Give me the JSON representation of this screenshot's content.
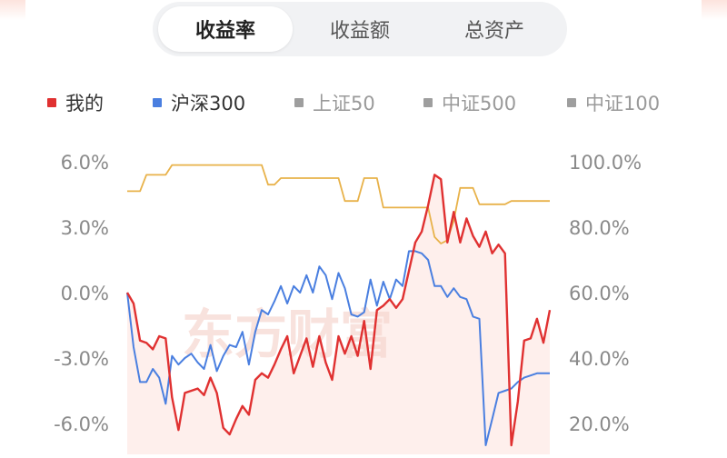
{
  "tabs": [
    {
      "label": "收益率",
      "active": true
    },
    {
      "label": "收益额",
      "active": false
    },
    {
      "label": "总资产",
      "active": false
    }
  ],
  "legend": [
    {
      "label": "我的",
      "color": "#e03131"
    },
    {
      "label": "沪深300",
      "color": "#4a7fe0"
    },
    {
      "label": "上证50",
      "color": "#9e9e9e"
    },
    {
      "label": "中证500",
      "color": "#9e9e9e"
    },
    {
      "label": "中证100",
      "color": "#9e9e9e"
    }
  ],
  "watermark": "东方财富",
  "colors": {
    "mine": "#e03131",
    "hs300": "#4a7fe0",
    "position": "#e8b24a",
    "area": "#fde2dd"
  },
  "chart_data": {
    "type": "line",
    "y_left": {
      "ticks": [
        "6.0%",
        "3.0%",
        "0.0%",
        "-3.0%",
        "-6.0%"
      ],
      "range": [
        -7.0,
        6.0
      ]
    },
    "y_right": {
      "ticks": [
        "100.0%",
        "80.0%",
        "60.0%",
        "40.0%",
        "20.0%"
      ],
      "range": [
        14.0,
        100.0
      ]
    },
    "x": [
      0,
      1,
      2,
      3,
      4,
      5,
      6,
      7,
      8,
      9,
      10,
      11,
      12,
      13,
      14,
      15,
      16,
      17,
      18,
      19,
      20,
      21,
      22,
      23,
      24,
      25,
      26,
      27,
      28,
      29,
      30,
      31,
      32,
      33,
      34,
      35,
      36,
      37,
      38,
      39,
      40,
      41,
      42,
      43,
      44,
      45,
      46,
      47,
      48,
      49,
      50,
      51,
      52,
      53,
      54,
      55,
      56,
      57,
      58,
      59,
      60,
      61,
      62,
      63,
      64,
      65,
      66
    ],
    "series": [
      {
        "name": "我的",
        "axis": "left",
        "values": [
          0.0,
          -0.5,
          -2.2,
          -2.3,
          -2.6,
          -2.0,
          -2.1,
          -4.8,
          -6.3,
          -4.6,
          -4.5,
          -4.4,
          -4.7,
          -3.9,
          -4.6,
          -6.2,
          -6.5,
          -5.8,
          -5.2,
          -5.6,
          -4.0,
          -3.7,
          -3.9,
          -3.3,
          -2.6,
          -2.0,
          -3.7,
          -2.9,
          -2.1,
          -3.4,
          -2.0,
          -3.2,
          -4.0,
          -2.0,
          -2.8,
          -2.0,
          -2.9,
          -1.3,
          -3.5,
          -0.8,
          -0.6,
          -0.3,
          -0.7,
          -0.3,
          1.0,
          2.3,
          2.8,
          4.0,
          5.4,
          5.2,
          2.3,
          3.7,
          2.3,
          3.4,
          2.6,
          2.1,
          2.8,
          1.8,
          2.2,
          1.8,
          -7.0,
          -5.0,
          -2.2,
          -2.1,
          -1.2,
          -2.3,
          -0.8
        ]
      },
      {
        "name": "沪深300",
        "axis": "left",
        "values": [
          0.0,
          -2.5,
          -4.1,
          -4.1,
          -3.5,
          -3.9,
          -5.1,
          -2.9,
          -3.3,
          -3.0,
          -2.8,
          -3.2,
          -3.5,
          -2.4,
          -3.6,
          -2.9,
          -2.4,
          -2.5,
          -1.8,
          -3.3,
          -1.8,
          -0.8,
          -1.0,
          -0.4,
          0.3,
          -0.5,
          0.3,
          0.0,
          0.8,
          0.0,
          1.2,
          0.8,
          -0.3,
          0.9,
          0.2,
          -1.0,
          -1.1,
          -0.9,
          0.6,
          -0.6,
          0.5,
          -0.3,
          0.6,
          0.3,
          1.9,
          1.9,
          1.8,
          1.5,
          0.3,
          0.3,
          -0.2,
          0.2,
          -0.2,
          -0.3,
          -1.1,
          -1.2,
          -7.0,
          -5.8,
          -4.6,
          -4.5,
          -4.4,
          -4.1,
          -3.9,
          -3.8,
          -3.7,
          -3.7,
          -3.7
        ]
      },
      {
        "name": "",
        "axis": "right",
        "values": [
          91.0,
          91.0,
          91.0,
          96.0,
          96.0,
          96.0,
          96.0,
          99.0,
          99.0,
          99.0,
          99.0,
          99.0,
          99.0,
          99.0,
          99.0,
          99.0,
          99.0,
          99.0,
          99.0,
          99.0,
          99.0,
          99.0,
          93.0,
          93.0,
          95.0,
          95.0,
          95.0,
          95.0,
          95.0,
          95.0,
          95.0,
          95.0,
          95.0,
          95.0,
          88.0,
          88.0,
          88.0,
          95.0,
          95.0,
          95.0,
          86.0,
          86.0,
          86.0,
          86.0,
          86.0,
          86.0,
          86.0,
          86.0,
          77.0,
          75.0,
          76.0,
          82.0,
          92.0,
          92.0,
          92.0,
          87.0,
          87.0,
          87.0,
          87.0,
          87.0,
          88.0,
          88.0,
          88.0,
          88.0,
          88.0,
          88.0,
          88.0
        ]
      }
    ]
  }
}
